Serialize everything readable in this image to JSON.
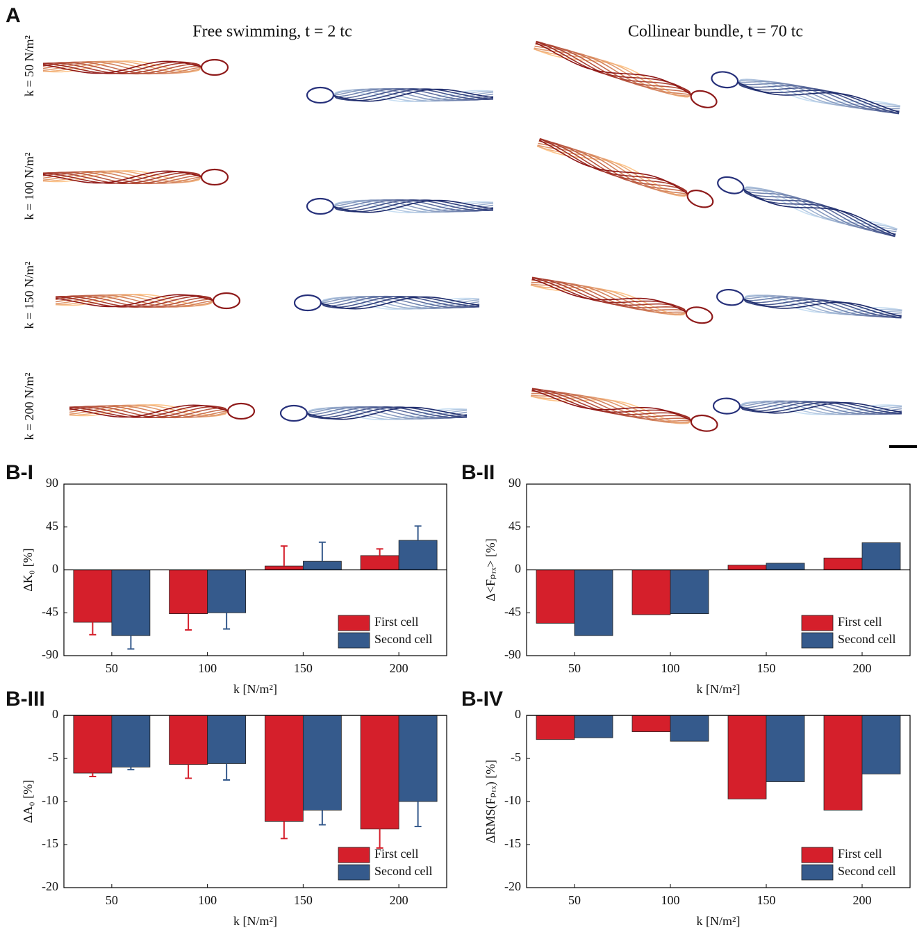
{
  "panel_a": {
    "label": "A",
    "titles": [
      "Free swimming, t = 2 tc",
      "Collinear bundle, t = 70 tc"
    ],
    "row_labels": [
      "k = 50 N/m²",
      "k = 100 N/m²",
      "k = 150 N/m²",
      "k = 200 N/m²"
    ]
  },
  "chart_data": [
    {
      "type": "bar",
      "label": "B-I",
      "categories": [
        "50",
        "100",
        "150",
        "200"
      ],
      "xlabel": "k [N/m²]",
      "ylabel": "ΔK₀ [%]",
      "ylim": [
        -90,
        90
      ],
      "yticks": [
        -90,
        -45,
        0,
        45,
        90
      ],
      "legend": "lower right",
      "series": [
        {
          "name": "First cell",
          "color": "#d51f2b",
          "values": [
            -55,
            -46,
            4,
            15
          ],
          "errors": [
            13,
            17,
            21,
            7
          ]
        },
        {
          "name": "Second cell",
          "color": "#355a8c",
          "values": [
            -69,
            -45,
            9,
            31
          ],
          "errors": [
            14,
            17,
            20,
            15
          ]
        }
      ]
    },
    {
      "type": "bar",
      "label": "B-II",
      "categories": [
        "50",
        "100",
        "150",
        "200"
      ],
      "xlabel": "k [N/m²]",
      "ylabel": "Δ<Fₚᵣₓ> [%]",
      "ylim": [
        -90,
        90
      ],
      "yticks": [
        -90,
        -45,
        0,
        45,
        90
      ],
      "legend": "lower right",
      "series": [
        {
          "name": "First cell",
          "color": "#d51f2b",
          "values": [
            -56,
            -47,
            5,
            12.5
          ]
        },
        {
          "name": "Second cell",
          "color": "#355a8c",
          "values": [
            -69,
            -46,
            7,
            28.5
          ]
        }
      ]
    },
    {
      "type": "bar",
      "label": "B-III",
      "categories": [
        "50",
        "100",
        "150",
        "200"
      ],
      "xlabel": "k [N/m²]",
      "ylabel": "ΔA₀ [%]",
      "ylim": [
        -20,
        0
      ],
      "yticks": [
        0,
        -5,
        -10,
        -15,
        -20
      ],
      "legend": "lower right",
      "series": [
        {
          "name": "First cell",
          "color": "#d51f2b",
          "values": [
            -6.7,
            -5.7,
            -12.3,
            -13.2
          ],
          "errors": [
            0.4,
            1.6,
            2.0,
            2.2
          ]
        },
        {
          "name": "Second cell",
          "color": "#355a8c",
          "values": [
            -6.0,
            -5.6,
            -11.0,
            -10.0
          ],
          "errors": [
            0.3,
            1.9,
            1.7,
            2.9
          ]
        }
      ]
    },
    {
      "type": "bar",
      "label": "B-IV",
      "categories": [
        "50",
        "100",
        "150",
        "200"
      ],
      "xlabel": "k [N/m²]",
      "ylabel": "ΔRMS(Fₚᵣₓ) [%]",
      "ylim": [
        -20,
        0
      ],
      "yticks": [
        0,
        -5,
        -10,
        -15,
        -20
      ],
      "legend": "lower right",
      "series": [
        {
          "name": "First cell",
          "color": "#d51f2b",
          "values": [
            -2.8,
            -1.9,
            -9.7,
            -11.0
          ]
        },
        {
          "name": "Second cell",
          "color": "#355a8c",
          "values": [
            -2.6,
            -3.0,
            -7.7,
            -6.8
          ]
        }
      ]
    }
  ]
}
